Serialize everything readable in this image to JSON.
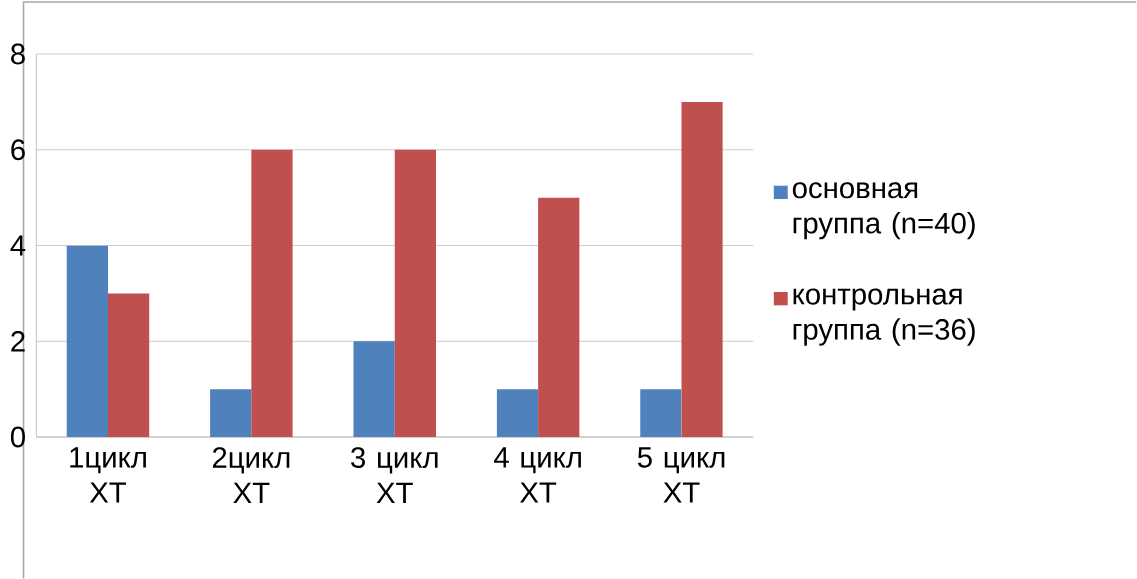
{
  "chart_data": {
    "type": "bar",
    "categories": [
      "1цикл ХТ",
      "2цикл ХТ",
      "3 цикл ХТ",
      "4 цикл ХТ",
      "5 цикл ХТ"
    ],
    "series": [
      {
        "name": "основная группа (n=40)",
        "color": "#4f81bd",
        "values": [
          4,
          1,
          2,
          1,
          1
        ]
      },
      {
        "name": "контрольная группа (n=36)",
        "color": "#c0504d",
        "values": [
          3,
          6,
          6,
          5,
          7
        ]
      }
    ],
    "ylim": [
      0,
      8
    ],
    "yticks": [
      0,
      2,
      4,
      6,
      8
    ],
    "grid": "y",
    "legend": "right"
  }
}
